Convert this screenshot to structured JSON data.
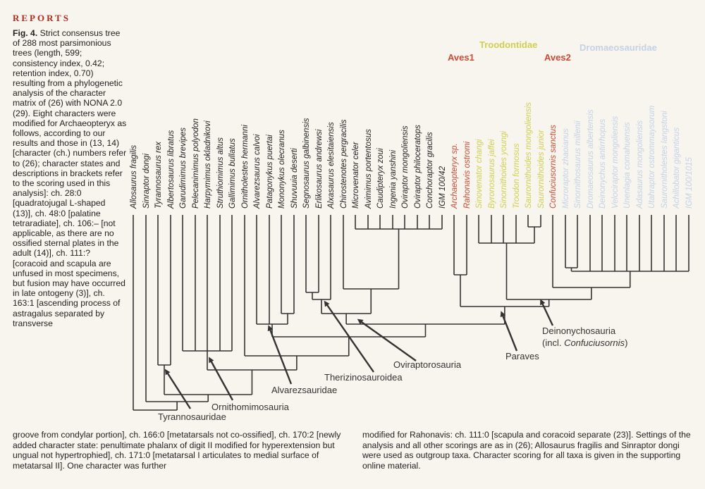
{
  "header": {
    "section": "REPORTS"
  },
  "caption": {
    "figure_label": "Fig. 4.",
    "text": "Strict consensus tree of 288 most parsimonious trees (length, 599; consistency index, 0.42; retention index, 0.70) resulting from a phylogenetic analysis of the character matrix of (26) with NONA 2.0 (29). Eight characters were modified for Archaeopteryx as follows, according to our results and those in (13, 14) [character (ch.) numbers refer to (26); character states and descriptions in brackets refer to the scoring used in this analysis]: ch. 28:0 [quadratojugal L-shaped (13)], ch. 48:0 [palatine tetraradiate], ch. 106:– [not applicable, as there are no ossified sternal plates in the adult (14)], ch. 111:? [coracoid and scapula are unfused in most specimens, but fusion may have occurred in late ontogeny (3)], ch. 163:1 [ascending process of astragalus separated by transverse"
  },
  "footer": {
    "left": "groove from condylar portion], ch. 166:0 [metatarsals not co-ossified], ch. 170:2 [newly added character state: penultimate phalanx of digit II modified for hyperextension but ungual not hypertrophied], ch. 171:0 [metatarsal I articulates to medial surface of metatarsal II]. One character was further",
    "right": "modified for Rahonavis: ch. 111:0 [scapula and coracoid separate (23)]. Settings of the analysis and all other scorings are as in (26); Allosaurus fragilis and Sinraptor dongi were used as outgroup taxa. Character scoring for all taxa is given in the supporting online material."
  },
  "families": {
    "aves1": "Aves1",
    "troodontidae": "Troodontidae",
    "aves2": "Aves2",
    "dromaeosauridae": "Dromaeosauridae"
  },
  "colors": {
    "aves": "#cc4a35",
    "troodontidae": "#cfcf50",
    "dromaeosauridae": "#c4d2e6",
    "tree": "#333333"
  },
  "taxa": [
    "Allosaurus fragilis",
    "Sinraptor dongi",
    "Tyrannosaurus rex",
    "Albertosaurus libratus",
    "Garudimimus brevipes",
    "Pelecanimimus polyodon",
    "Harpymimus okladnikovi",
    "Struthiomimus altus",
    "Gallimimus bullatus",
    "Ornitholestes hermanni",
    "Alvarezsaurus calvoi",
    "Patagonykus puertai",
    "Mononykus olecranus",
    "Shuvuuia deserti",
    "Segnosaurus galbinensis",
    "Erlikosaurus andrewsi",
    "Alxasaurus elesitaiensis",
    "Chirostenotes pergracilis",
    "Microvenator celer",
    "Avimimus portentosus",
    "Caudipteryx zoui",
    "Ingenia yanshini",
    "Oviraptor mongoliensis",
    "Oviraptor philoceratops",
    "Conchoraptor gracilis",
    "IGM 100/42",
    "Archaeopteryx sp.",
    "Rahonavis ostromi",
    "Sinovenator changi",
    "Byronosaurus jaffei",
    "Sinornithoides youngi",
    "Troodon formosus",
    "Saurornithoides mongoliensis",
    "Saurornithoides junior",
    "Confuciusornis sanctus",
    "Microraptor zhaoianus",
    "Sinornithosaurus millenii",
    "Dromaeosaurus albertensis",
    "Deinonychus antirrhopus",
    "Velociraptor mongoliensis",
    "Unenlagia comahuensis",
    "Adasaurus mongoliensis",
    "Utahraptor ostrommaysorum",
    "Saurornitholestes langstoni",
    "Achillobator giganticus",
    "IGM 100/1015"
  ],
  "clades": {
    "tyrannosauridae": "Tyrannosauridae",
    "ornithomimosauria": "Ornithomimosauria",
    "alvarezsauridae": "Alvarezsauridae",
    "therizinosauroidea": "Therizinosauroidea",
    "oviraptorosauria": "Oviraptorosauria",
    "paraves": "Paraves",
    "deinonychosauria_line1": "Deinonychosauria",
    "deinonychosauria_line2_prefix": "(incl. ",
    "deinonychosauria_line2_italic": "Confuciusornis",
    "deinonychosauria_line2_suffix": ")"
  }
}
